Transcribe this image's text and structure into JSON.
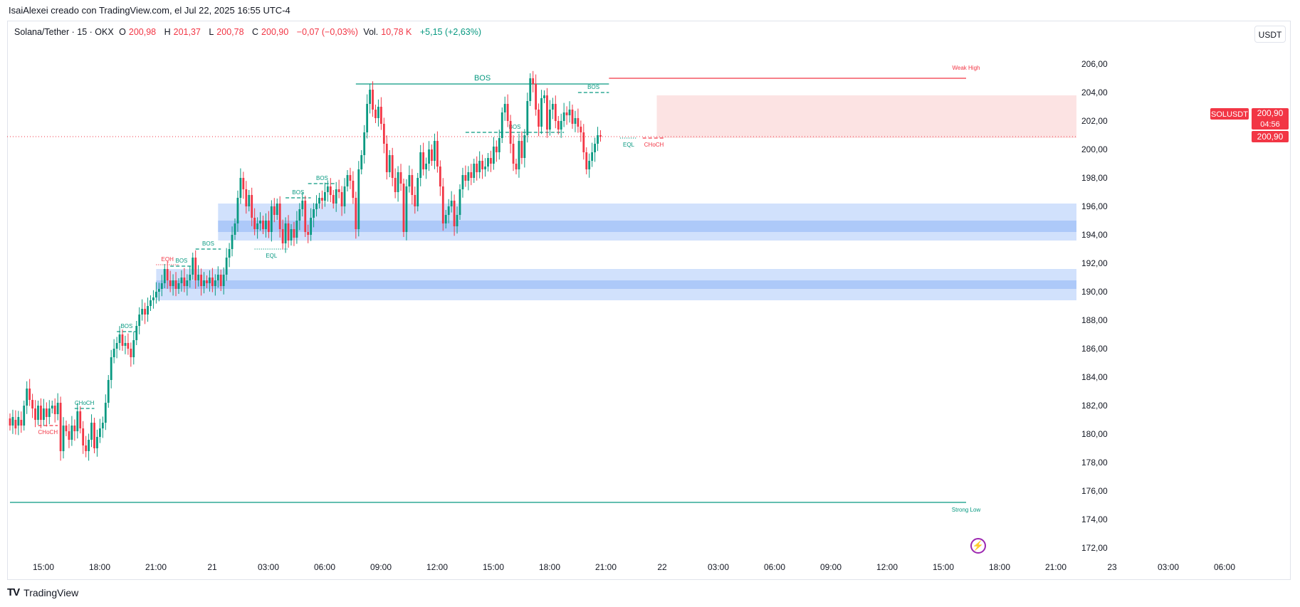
{
  "header": {
    "text": "IsaiAlexei creado con TradingView.com, el Jul 22, 2025 16:55 UTC-4"
  },
  "legend": {
    "symbol": "Solana/Tether · 15 · OKX",
    "o_label": "O",
    "o_value": "200,98",
    "h_label": "H",
    "h_value": "201,37",
    "l_label": "L",
    "l_value": "200,78",
    "c_label": "C",
    "c_value": "200,90",
    "change": "−0,07 (−0,03%)",
    "vol_label": "Vol.",
    "vol_value": "10,78 K",
    "indicator_change": "+5,15 (+2,63%)"
  },
  "currency_button": "USDT",
  "price_tag": {
    "symbol": "SOLUSDT",
    "price": "200,90",
    "countdown": "04:56",
    "last": "200,90"
  },
  "footer": {
    "brand": "TradingView"
  },
  "icons": {
    "lightning": "lightning-icon",
    "logo": "tradingview-logo-icon"
  },
  "colors": {
    "up": "#089981",
    "down": "#f23645",
    "demand_zone": "#c9dcfb",
    "demand_core": "#a9c6f8",
    "supply_zone": "#fce3e3"
  },
  "chart_data": {
    "type": "candlestick",
    "ylim": [
      171,
      207.5
    ],
    "y_ticks": [
      "206,00",
      "204,00",
      "202,00",
      "200,00",
      "198,00",
      "196,00",
      "194,00",
      "192,00",
      "190,00",
      "188,00",
      "186,00",
      "184,00",
      "182,00",
      "180,00",
      "178,00",
      "176,00",
      "174,00",
      "172,00"
    ],
    "x_ticks": [
      "15:00",
      "18:00",
      "21:00",
      "21",
      "03:00",
      "06:00",
      "09:00",
      "12:00",
      "15:00",
      "18:00",
      "21:00",
      "22",
      "03:00",
      "06:00",
      "09:00",
      "12:00",
      "15:00",
      "18:00",
      "21:00",
      "23",
      "03:00",
      "06:00"
    ],
    "candles": [
      [
        181.1,
        180.6
      ],
      [
        180.6,
        181.2
      ],
      [
        181.0,
        180.4
      ],
      [
        180.6,
        181.2
      ],
      [
        181.0,
        180.6
      ],
      [
        180.6,
        182.0
      ],
      [
        182.0,
        183.2
      ],
      [
        183.2,
        182.4
      ],
      [
        182.4,
        181.8
      ],
      [
        181.8,
        181.0
      ],
      [
        181.0,
        182.0
      ],
      [
        182.0,
        181.0
      ],
      [
        181.0,
        181.8
      ],
      [
        181.8,
        181.2
      ],
      [
        181.2,
        181.8
      ],
      [
        181.8,
        182.0
      ],
      [
        182.0,
        181.4
      ],
      [
        181.4,
        182.2
      ],
      [
        182.2,
        178.8
      ],
      [
        178.8,
        180.6
      ],
      [
        180.6,
        180.2
      ],
      [
        180.2,
        179.6
      ],
      [
        179.6,
        180.6
      ],
      [
        180.6,
        180.2
      ],
      [
        180.2,
        181.6
      ],
      [
        181.6,
        180.4
      ],
      [
        180.4,
        179.2
      ],
      [
        179.2,
        178.8
      ],
      [
        178.8,
        179.6
      ],
      [
        179.6,
        180.8
      ],
      [
        180.8,
        179.0
      ],
      [
        179.0,
        179.8
      ],
      [
        179.8,
        180.4
      ],
      [
        180.4,
        180.8
      ],
      [
        180.8,
        182.2
      ],
      [
        182.2,
        183.8
      ],
      [
        183.8,
        185.4
      ],
      [
        185.4,
        186.0
      ],
      [
        186.0,
        186.4
      ],
      [
        186.4,
        187.0
      ],
      [
        187.0,
        186.2
      ],
      [
        186.2,
        186.4
      ],
      [
        186.4,
        186.0
      ],
      [
        186.0,
        185.4
      ],
      [
        185.4,
        186.6
      ],
      [
        186.6,
        187.6
      ],
      [
        187.6,
        188.4
      ],
      [
        188.4,
        188.8
      ],
      [
        188.8,
        188.4
      ],
      [
        188.4,
        189.0
      ],
      [
        189.0,
        189.4
      ],
      [
        189.4,
        189.6
      ],
      [
        189.6,
        190.0
      ],
      [
        190.0,
        190.2
      ],
      [
        190.2,
        190.6
      ],
      [
        190.6,
        191.6
      ],
      [
        191.6,
        190.8
      ],
      [
        190.8,
        190.4
      ],
      [
        190.4,
        190.8
      ],
      [
        190.8,
        190.2
      ],
      [
        190.2,
        190.6
      ],
      [
        190.6,
        191.0
      ],
      [
        191.0,
        190.4
      ],
      [
        190.4,
        190.8
      ],
      [
        190.8,
        191.2
      ],
      [
        191.2,
        192.4
      ],
      [
        192.4,
        190.8
      ],
      [
        190.8,
        191.2
      ],
      [
        191.2,
        190.4
      ],
      [
        190.4,
        190.8
      ],
      [
        190.8,
        190.6
      ],
      [
        190.6,
        191.0
      ],
      [
        191.0,
        190.4
      ],
      [
        190.4,
        190.8
      ],
      [
        190.8,
        191.2
      ],
      [
        191.2,
        190.4
      ],
      [
        190.4,
        191.2
      ],
      [
        191.2,
        192.4
      ],
      [
        192.4,
        193.0
      ],
      [
        193.0,
        194.0
      ],
      [
        194.0,
        194.8
      ],
      [
        194.8,
        196.6
      ],
      [
        196.6,
        198.0
      ],
      [
        198.0,
        197.2
      ],
      [
        197.2,
        196.0
      ],
      [
        196.0,
        196.8
      ],
      [
        196.8,
        195.2
      ],
      [
        195.2,
        194.4
      ],
      [
        194.4,
        194.8
      ],
      [
        194.8,
        195.0
      ],
      [
        195.0,
        194.4
      ],
      [
        194.4,
        195.0
      ],
      [
        195.0,
        194.2
      ],
      [
        194.2,
        196.0
      ],
      [
        196.0,
        195.4
      ],
      [
        195.4,
        196.2
      ],
      [
        196.2,
        194.4
      ],
      [
        194.4,
        193.4
      ],
      [
        193.4,
        194.8
      ],
      [
        194.8,
        193.6
      ],
      [
        193.6,
        194.4
      ],
      [
        194.4,
        193.8
      ],
      [
        193.8,
        195.0
      ],
      [
        195.0,
        195.8
      ],
      [
        195.8,
        196.4
      ],
      [
        196.4,
        194.2
      ],
      [
        194.2,
        194.0
      ],
      [
        194.0,
        195.2
      ],
      [
        195.2,
        195.8
      ],
      [
        195.8,
        196.2
      ],
      [
        196.2,
        196.6
      ],
      [
        196.6,
        196.4
      ],
      [
        196.4,
        197.0
      ],
      [
        197.0,
        197.4
      ],
      [
        197.4,
        196.8
      ],
      [
        196.8,
        196.2
      ],
      [
        196.2,
        197.2
      ],
      [
        197.2,
        197.0
      ],
      [
        197.0,
        196.0
      ],
      [
        196.0,
        197.4
      ],
      [
        197.4,
        198.2
      ],
      [
        198.2,
        197.8
      ],
      [
        197.8,
        196.6
      ],
      [
        196.6,
        194.4
      ],
      [
        194.4,
        198.6
      ],
      [
        198.6,
        199.6
      ],
      [
        199.6,
        201.2
      ],
      [
        201.2,
        203.2
      ],
      [
        203.2,
        204.2
      ],
      [
        204.2,
        202.8
      ],
      [
        202.8,
        202.2
      ],
      [
        202.2,
        203.0
      ],
      [
        203.0,
        201.8
      ],
      [
        201.8,
        200.4
      ],
      [
        200.4,
        198.4
      ],
      [
        198.4,
        199.6
      ],
      [
        199.6,
        198.0
      ],
      [
        198.0,
        197.0
      ],
      [
        197.0,
        198.4
      ],
      [
        198.4,
        197.6
      ],
      [
        197.6,
        194.2
      ],
      [
        194.2,
        197.4
      ],
      [
        197.4,
        198.2
      ],
      [
        198.2,
        196.8
      ],
      [
        196.8,
        196.0
      ],
      [
        196.0,
        198.0
      ],
      [
        198.0,
        199.8
      ],
      [
        199.8,
        198.6
      ],
      [
        198.6,
        199.0
      ],
      [
        199.0,
        200.0
      ],
      [
        200.0,
        199.2
      ],
      [
        199.2,
        200.6
      ],
      [
        200.6,
        198.8
      ],
      [
        198.8,
        197.4
      ],
      [
        197.4,
        194.8
      ],
      [
        194.8,
        195.4
      ],
      [
        195.4,
        196.0
      ],
      [
        196.0,
        196.4
      ],
      [
        196.4,
        194.6
      ],
      [
        194.6,
        195.4
      ],
      [
        195.4,
        197.2
      ],
      [
        197.2,
        198.2
      ],
      [
        198.2,
        197.8
      ],
      [
        197.8,
        198.4
      ],
      [
        198.4,
        198.0
      ],
      [
        198.0,
        199.0
      ],
      [
        199.0,
        198.4
      ],
      [
        198.4,
        199.2
      ],
      [
        199.2,
        198.6
      ],
      [
        198.6,
        198.8
      ],
      [
        198.8,
        199.4
      ],
      [
        199.4,
        199.0
      ],
      [
        199.0,
        200.2
      ],
      [
        200.2,
        199.8
      ],
      [
        199.8,
        200.8
      ],
      [
        200.8,
        202.6
      ],
      [
        202.6,
        203.2
      ],
      [
        203.2,
        202.0
      ],
      [
        202.0,
        200.4
      ],
      [
        200.4,
        199.0
      ],
      [
        199.0,
        198.6
      ],
      [
        198.6,
        200.6
      ],
      [
        200.6,
        199.4
      ],
      [
        199.4,
        201.0
      ],
      [
        201.0,
        203.4
      ],
      [
        203.4,
        205.0
      ],
      [
        205.0,
        204.6
      ],
      [
        204.6,
        202.8
      ],
      [
        202.8,
        201.6
      ],
      [
        201.6,
        203.6
      ],
      [
        203.6,
        203.8
      ],
      [
        203.8,
        201.4
      ],
      [
        201.4,
        202.8
      ],
      [
        202.8,
        203.2
      ],
      [
        203.2,
        202.0
      ],
      [
        202.0,
        201.4
      ],
      [
        201.4,
        202.0
      ],
      [
        202.0,
        202.6
      ],
      [
        202.6,
        202.4
      ],
      [
        202.4,
        202.8
      ],
      [
        202.8,
        201.8
      ],
      [
        201.8,
        202.2
      ],
      [
        202.2,
        201.6
      ],
      [
        201.6,
        201.2
      ],
      [
        201.2,
        199.8
      ],
      [
        199.8,
        198.6
      ],
      [
        198.6,
        199.2
      ],
      [
        199.2,
        199.8
      ],
      [
        199.8,
        200.4
      ],
      [
        200.4,
        201.0
      ],
      [
        201.0,
        200.9
      ]
    ],
    "zones": [
      {
        "type": "demand",
        "from_index": 74,
        "to": "right-edge",
        "low": 193.6,
        "high": 196.2,
        "core_low": 194.2,
        "core_high": 195.0
      },
      {
        "type": "demand",
        "from_index": 52,
        "to": "right-edge",
        "low": 189.4,
        "high": 191.6,
        "core_low": 190.2,
        "core_high": 190.8
      },
      {
        "type": "supply",
        "from_index": 230,
        "to": "right-edge",
        "low": 200.8,
        "high": 203.8
      }
    ],
    "structure_lines": [
      {
        "label": "BOS",
        "price": 204.6,
        "from_index": 123,
        "to_index": 213,
        "style": "solid",
        "color": "up",
        "big": true
      },
      {
        "label": "Weak High",
        "price": 205.0,
        "from_index": 213,
        "to_index": 340,
        "style": "solid",
        "color": "down"
      },
      {
        "label": "Strong Low",
        "price": 175.2,
        "from_index": 0,
        "to_index": 340,
        "style": "solid",
        "color": "up"
      },
      {
        "label": "BOS",
        "price": 204.0,
        "from_index": 202,
        "to_index": 213,
        "style": "dashed",
        "color": "up"
      },
      {
        "label": "BOS",
        "price": 201.2,
        "from_index": 162,
        "to_index": 197,
        "style": "dashed",
        "color": "up"
      },
      {
        "label": "BOS",
        "price": 197.6,
        "from_index": 106,
        "to_index": 116,
        "style": "dashed",
        "color": "up"
      },
      {
        "label": "BOS",
        "price": 196.6,
        "from_index": 98,
        "to_index": 107,
        "style": "dashed",
        "color": "up"
      },
      {
        "label": "BOS",
        "price": 193.0,
        "from_index": 66,
        "to_index": 75,
        "style": "dashed",
        "color": "up"
      },
      {
        "label": "BOS",
        "price": 191.8,
        "from_index": 57,
        "to_index": 65,
        "style": "dashed",
        "color": "up"
      },
      {
        "label": "EQH",
        "price": 191.9,
        "from_index": 52,
        "to_index": 60,
        "style": "dotted",
        "color": "down"
      },
      {
        "label": "BOS",
        "price": 187.2,
        "from_index": 38,
        "to_index": 45,
        "style": "dashed",
        "color": "up"
      },
      {
        "label": "CHoCH",
        "price": 181.8,
        "from_index": 23,
        "to_index": 30,
        "style": "dashed",
        "color": "up"
      },
      {
        "label": "CHoCH",
        "price": 180.6,
        "from_index": 10,
        "to_index": 17,
        "style": "dashed",
        "color": "down"
      },
      {
        "label": "EQL",
        "price": 193.0,
        "from_index": 87,
        "to_index": 99,
        "style": "dotted",
        "color": "up"
      },
      {
        "label": "EQL",
        "price": 200.8,
        "from_index": 217,
        "to_index": 223,
        "style": "dotted",
        "color": "up"
      },
      {
        "label": "CHoCH",
        "price": 200.8,
        "from_index": 225,
        "to_index": 233,
        "style": "dashed",
        "color": "down"
      }
    ],
    "last_price": 200.9
  }
}
